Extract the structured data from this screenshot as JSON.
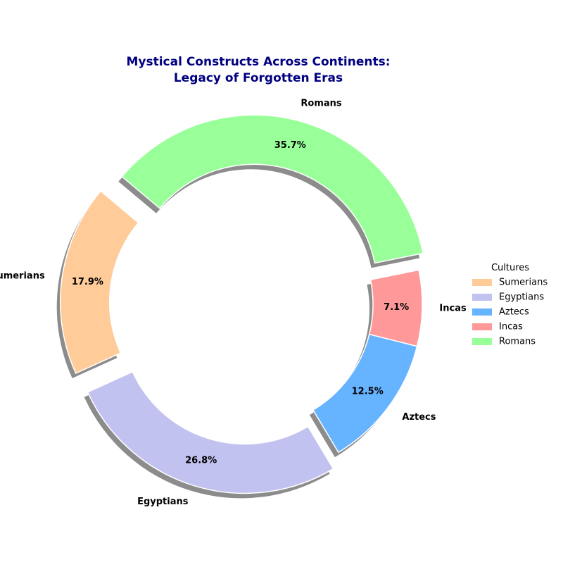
{
  "chart_data": {
    "type": "pie",
    "variant": "donut",
    "title_lines": [
      "Mystical Constructs Across Continents:",
      "Legacy of Forgotten Eras"
    ],
    "categories": [
      "Sumerians",
      "Egyptians",
      "Aztecs",
      "Incas",
      "Romans"
    ],
    "values": [
      17.9,
      26.8,
      12.5,
      7.1,
      35.7
    ],
    "percent_labels": [
      "17.9%",
      "26.8%",
      "12.5%",
      "7.1%",
      "35.7%"
    ],
    "colors": [
      "#ffcc99",
      "#c2c2f0",
      "#66b3ff",
      "#ff9999",
      "#99ff99"
    ],
    "exploded": [
      true,
      true,
      false,
      false,
      true
    ],
    "legend_title": "Cultures",
    "legend_placement": "right",
    "title_color": "#000080"
  }
}
